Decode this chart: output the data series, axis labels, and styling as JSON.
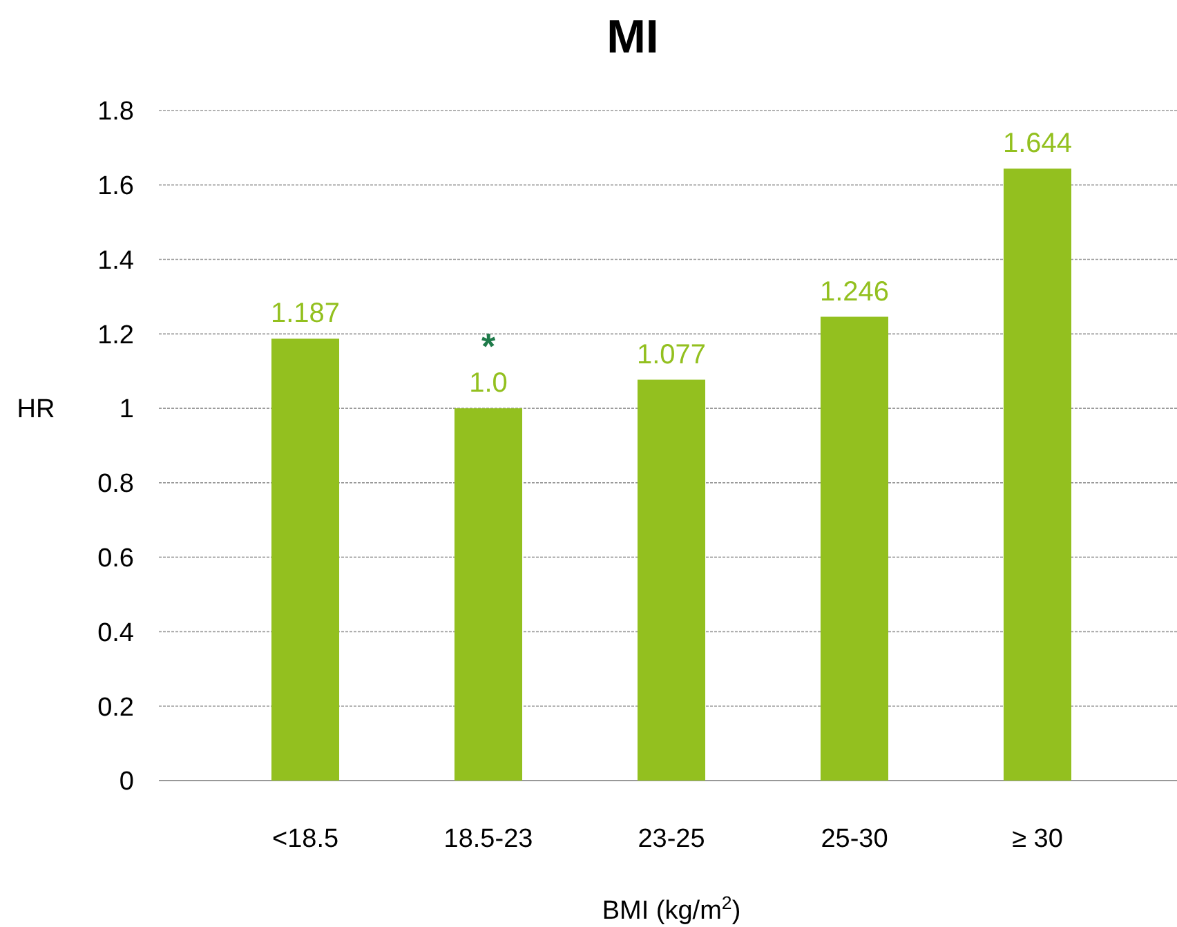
{
  "chart_data": {
    "type": "bar",
    "title": "MI",
    "xlabel": "BMI (kg/m$^{2}$)",
    "ylabel": "HR",
    "categories": [
      "<18.5",
      "18.5-23",
      "23-25",
      "25-30",
      "≥ 30"
    ],
    "values": [
      1.187,
      1.0,
      1.077,
      1.246,
      1.644
    ],
    "value_labels": [
      "1.187",
      "1.0",
      "1.077",
      "1.246",
      "1.644"
    ],
    "color": "#93c01f",
    "ylim": [
      0,
      1.8
    ],
    "yticks": [
      0,
      0.2,
      0.4,
      0.6,
      0.8,
      1,
      1.2,
      1.4,
      1.6,
      1.8
    ],
    "grid": "y",
    "annotations": [
      {
        "text": "*",
        "x": "18.5-23",
        "y": 1.0
      }
    ]
  }
}
